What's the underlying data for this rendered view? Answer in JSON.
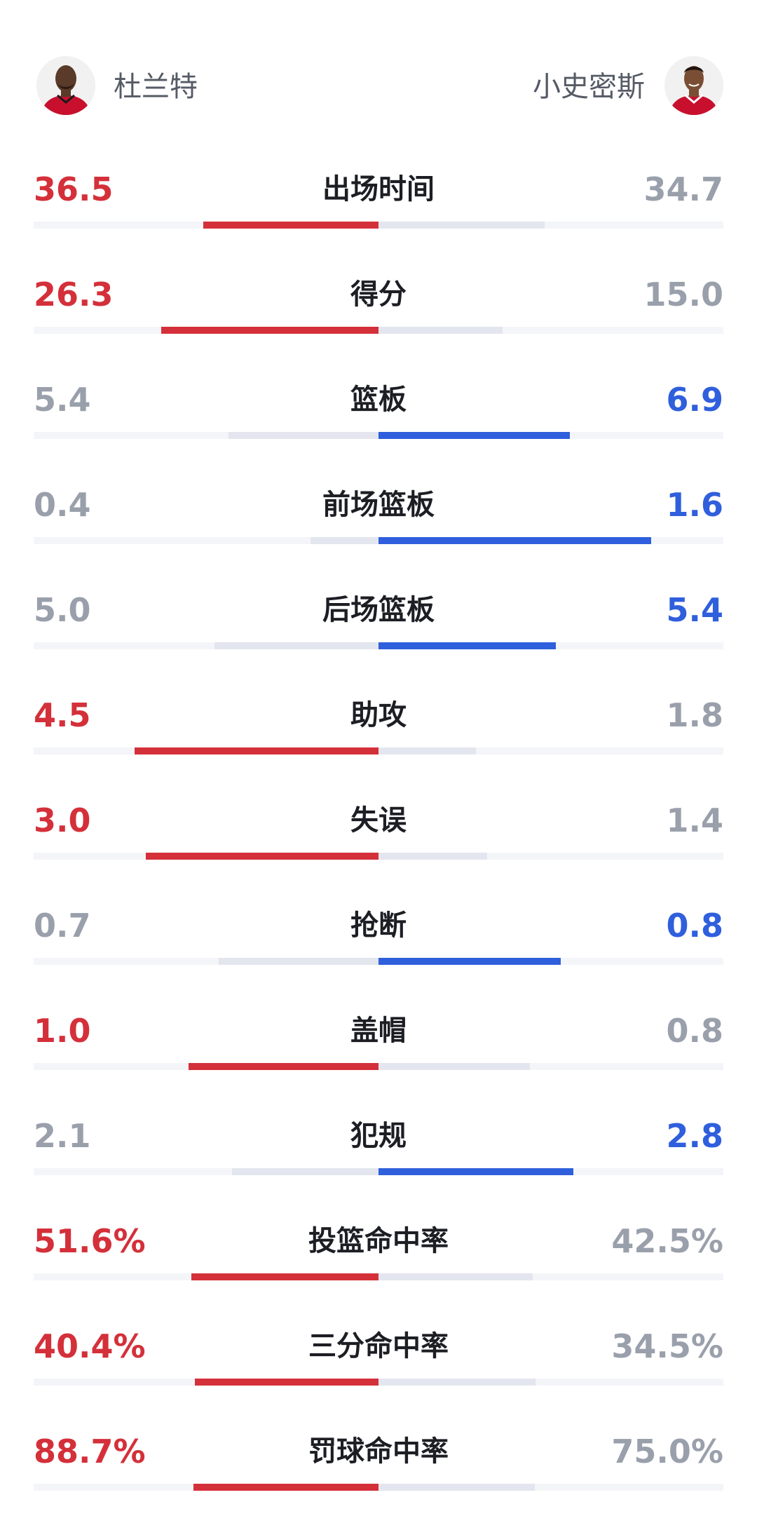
{
  "players": {
    "left": {
      "name": "杜兰特",
      "avatar_icon": "player-portrait-icon",
      "jersey_color": "#c8102e"
    },
    "right": {
      "name": "小史密斯",
      "avatar_icon": "player-portrait-icon",
      "jersey_color": "#c8102e"
    }
  },
  "colors": {
    "leader_left": "#d4303a",
    "leader_right": "#2f5fdc",
    "trailing": "#9aa0ab",
    "track_light": "#e3e6ee"
  },
  "chart_data": {
    "type": "table",
    "series": [
      {
        "name": "杜兰特",
        "values": [
          36.5,
          26.3,
          5.4,
          0.4,
          5.0,
          4.5,
          3.0,
          0.7,
          1.0,
          2.1,
          51.6,
          40.4,
          88.7
        ]
      },
      {
        "name": "小史密斯",
        "values": [
          34.7,
          15.0,
          6.9,
          1.6,
          5.4,
          1.8,
          1.4,
          0.8,
          0.8,
          2.8,
          42.5,
          34.5,
          75.0
        ]
      }
    ],
    "rows": [
      {
        "label": "出场时间",
        "left": "36.5",
        "right": "34.7",
        "leader": "left",
        "share": 0.513
      },
      {
        "label": "得分",
        "left": "26.3",
        "right": "15.0",
        "leader": "left",
        "share": 0.637
      },
      {
        "label": "篮板",
        "left": "5.4",
        "right": "6.9",
        "leader": "right",
        "share": 0.561
      },
      {
        "label": "前场篮板",
        "left": "0.4",
        "right": "1.6",
        "leader": "right",
        "share": 0.8
      },
      {
        "label": "后场篮板",
        "left": "5.0",
        "right": "5.4",
        "leader": "right",
        "share": 0.519
      },
      {
        "label": "助攻",
        "left": "4.5",
        "right": "1.8",
        "leader": "left",
        "share": 0.714
      },
      {
        "label": "失误",
        "left": "3.0",
        "right": "1.4",
        "leader": "left",
        "share": 0.682
      },
      {
        "label": "抢断",
        "left": "0.7",
        "right": "0.8",
        "leader": "right",
        "share": 0.533
      },
      {
        "label": "盖帽",
        "left": "1.0",
        "right": "0.8",
        "leader": "left",
        "share": 0.556
      },
      {
        "label": "犯规",
        "left": "2.1",
        "right": "2.8",
        "leader": "right",
        "share": 0.571
      },
      {
        "label": "投篮命中率",
        "left": "51.6%",
        "right": "42.5%",
        "leader": "left",
        "share": 0.548
      },
      {
        "label": "三分命中率",
        "left": "40.4%",
        "right": "34.5%",
        "leader": "left",
        "share": 0.539
      },
      {
        "label": "罚球命中率",
        "left": "88.7%",
        "right": "75.0%",
        "leader": "left",
        "share": 0.542
      }
    ]
  }
}
